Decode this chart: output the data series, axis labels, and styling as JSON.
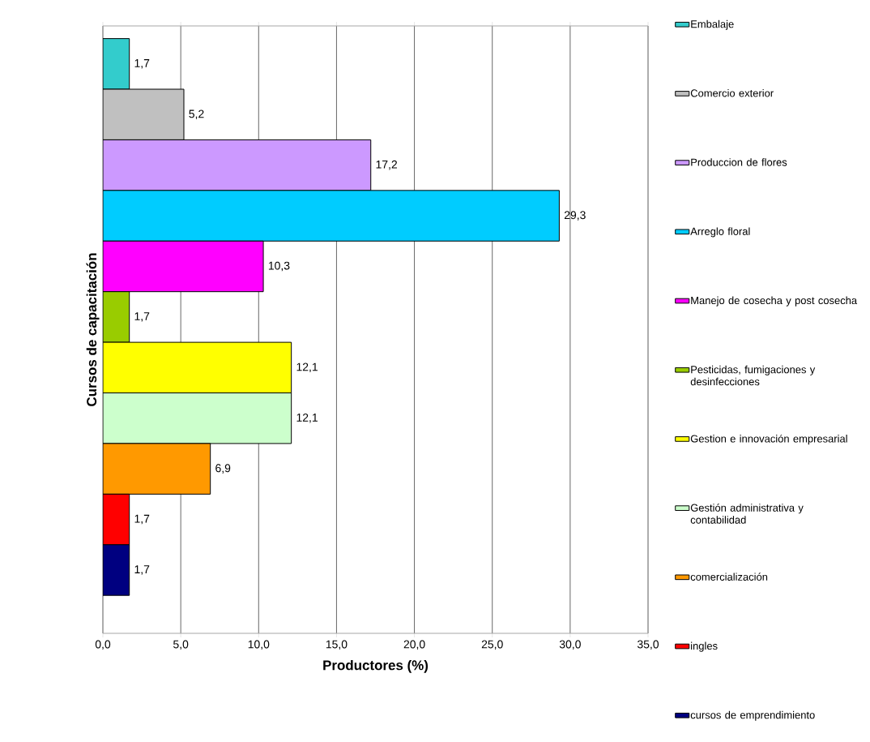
{
  "chart_data": {
    "type": "bar",
    "orientation": "horizontal",
    "xlabel": "Productores (%)",
    "ylabel": "Cursos de capacitación",
    "categories": [
      null
    ],
    "xlim": [
      0,
      35
    ],
    "xticks": [
      {
        "value": 0,
        "label": "0,0"
      },
      {
        "value": 5,
        "label": "5,0"
      },
      {
        "value": 10,
        "label": "10,0"
      },
      {
        "value": 15,
        "label": "15,0"
      },
      {
        "value": 20,
        "label": "20,0"
      },
      {
        "value": 25,
        "label": "25,0"
      },
      {
        "value": 30,
        "label": "30,0"
      },
      {
        "value": 35,
        "label": "35,0"
      }
    ],
    "grid": "x",
    "legend": "right",
    "tick_labels": "x",
    "series": [
      {
        "name": "Embalaje",
        "color": "#33cccc",
        "values": [
          1.7
        ],
        "value_labels": [
          "1,7"
        ]
      },
      {
        "name": "Comercio exterior",
        "color": "#c0c0c0",
        "values": [
          5.2
        ],
        "value_labels": [
          "5,2"
        ]
      },
      {
        "name": "Produccion de flores",
        "color": "#cc99ff",
        "values": [
          17.2
        ],
        "value_labels": [
          "17,2"
        ]
      },
      {
        "name": "Arreglo floral",
        "color": "#00ccff",
        "values": [
          29.3
        ],
        "value_labels": [
          "29,3"
        ]
      },
      {
        "name": "Manejo de cosecha y post cosecha",
        "color": "#ff00ff",
        "values": [
          10.3
        ],
        "value_labels": [
          "10,3"
        ]
      },
      {
        "name": "Pesticidas, fumigaciones y desinfecciones",
        "color": "#99cc00",
        "values": [
          1.7
        ],
        "value_labels": [
          "1,7"
        ]
      },
      {
        "name": "Gestion e innovación empresarial",
        "color": "#ffff00",
        "values": [
          12.1
        ],
        "value_labels": [
          "12,1"
        ]
      },
      {
        "name": "Gestión administrativa y contabilidad",
        "color": "#ccffcc",
        "values": [
          12.1
        ],
        "value_labels": [
          "12,1"
        ]
      },
      {
        "name": "comercialización",
        "color": "#ff9900",
        "values": [
          6.9
        ],
        "value_labels": [
          "6,9"
        ]
      },
      {
        "name": "ingles",
        "color": "#ff0000",
        "values": [
          1.7
        ],
        "value_labels": [
          "1,7"
        ]
      },
      {
        "name": "cursos de emprendimiento",
        "color": "#000080",
        "values": [
          1.7
        ],
        "value_labels": [
          "1,7"
        ]
      }
    ]
  }
}
